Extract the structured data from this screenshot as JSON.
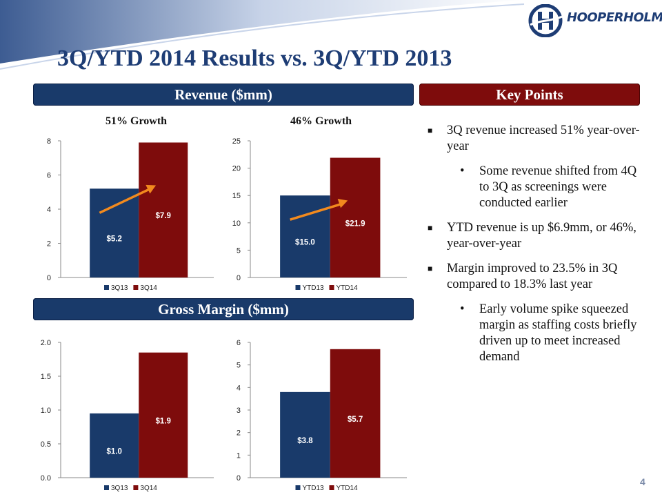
{
  "slide": {
    "title": "3Q/YTD 2014 Results vs. 3Q/YTD 2013",
    "logo_text": "HOOPERHOLMES",
    "page_number": "4",
    "revenue_header": "Revenue ($mm)",
    "gross_margin_header": "Gross Margin ($mm)",
    "key_points_header": "Key Points",
    "growth_labels": [
      "51% Growth",
      "46% Growth"
    ],
    "colors": {
      "navy": "#193a6a",
      "maroon": "#7e0c0c",
      "arrow": "#f28a1e"
    }
  },
  "key_points": [
    {
      "level": 1,
      "marker": "■",
      "text": "3Q revenue increased 51% year-over-year"
    },
    {
      "level": 2,
      "marker": "•",
      "text": "Some revenue shifted from 4Q to 3Q as screenings were conducted earlier"
    },
    {
      "level": 1,
      "marker": "■",
      "text": "YTD revenue is up $6.9mm, or 46%, year-over-year"
    },
    {
      "level": 1,
      "marker": "■",
      "text": "Margin improved to 23.5% in 3Q compared to 18.3% last year"
    },
    {
      "level": 2,
      "marker": "•",
      "text": "Early volume spike squeezed margin as staffing costs briefly driven up to meet increased demand"
    }
  ],
  "chart_data": [
    {
      "type": "bar",
      "categories": [
        "3Q13",
        "3Q14"
      ],
      "values": [
        5.2,
        7.9
      ],
      "labels": [
        "$5.2",
        "$7.9"
      ],
      "ylim": [
        0,
        8
      ],
      "yticks": [
        0,
        2,
        4,
        6,
        8
      ],
      "ytick_labels": [
        "0",
        "2",
        "4",
        "6",
        "8"
      ],
      "legend": [
        "3Q13",
        "3Q14"
      ],
      "arrow": true
    },
    {
      "type": "bar",
      "categories": [
        "YTD13",
        "YTD14"
      ],
      "values": [
        15.0,
        21.9
      ],
      "labels": [
        "$15.0",
        "$21.9"
      ],
      "ylim": [
        0,
        25
      ],
      "yticks": [
        0,
        5,
        10,
        15,
        20,
        25
      ],
      "ytick_labels": [
        "0",
        "5",
        "10",
        "15",
        "20",
        "25"
      ],
      "legend": [
        "YTD13",
        "YTD14"
      ],
      "arrow": true
    },
    {
      "type": "bar",
      "categories": [
        "3Q13",
        "3Q14"
      ],
      "values": [
        0.95,
        1.85
      ],
      "labels": [
        "$1.0",
        "$1.9"
      ],
      "ylim": [
        0,
        2
      ],
      "yticks": [
        0,
        0.5,
        1,
        1.5,
        2
      ],
      "ytick_labels": [
        "0.0",
        "0.5",
        "1.0",
        "1.5",
        "2.0"
      ],
      "legend": [
        "3Q13",
        "3Q14"
      ],
      "arrow": false
    },
    {
      "type": "bar",
      "categories": [
        "YTD13",
        "YTD14"
      ],
      "values": [
        3.8,
        5.7
      ],
      "labels": [
        "$3.8",
        "$5.7"
      ],
      "ylim": [
        0,
        6
      ],
      "yticks": [
        0,
        1,
        2,
        3,
        4,
        5,
        6
      ],
      "ytick_labels": [
        "0",
        "1",
        "2",
        "3",
        "4",
        "5",
        "6"
      ],
      "legend": [
        "YTD13",
        "YTD14"
      ],
      "arrow": false
    }
  ]
}
